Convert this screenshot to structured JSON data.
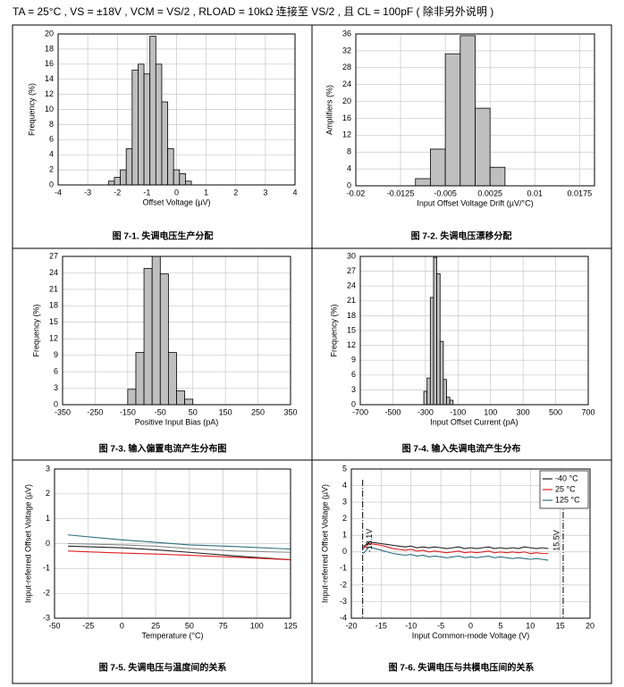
{
  "header": "TA = 25°C , VS = ±18V , VCM = VS/2 , RLOAD = 10kΩ 连接至 VS/2 , 且 CL = 100pF ( 除非另外说明 )",
  "chart_data": [
    {
      "type": "histogram",
      "caption": "图 7-1. 失调电压生产分配",
      "x_label": "Offset Voltage (µV)",
      "y_label": "Frequency (%)",
      "bins": [
        -2.3,
        -2.1,
        -1.9,
        -1.7,
        -1.5,
        -1.3,
        -1.1,
        -0.9,
        -0.7,
        -0.5,
        -0.3,
        -0.1,
        0.1,
        0.3,
        0.5
      ],
      "values": [
        0.5,
        1,
        2,
        4.8,
        15.2,
        16,
        14.7,
        19.7,
        16,
        11,
        4.8,
        2,
        1.5,
        0.5
      ],
      "color": "#bfbfbf",
      "xlim": [
        -4,
        4
      ],
      "xticks": [
        -4,
        -3,
        -2,
        -1,
        0,
        1,
        2,
        3,
        4
      ],
      "ylim": [
        0,
        20
      ],
      "yticks": [
        0,
        2,
        4,
        6,
        8,
        10,
        12,
        14,
        16,
        18,
        20
      ],
      "grid": true
    },
    {
      "type": "histogram",
      "caption": "图 7-2. 失调电压漂移分配",
      "x_label": "Input Offset Voltage Drift (µV/°C)",
      "y_label": "Amplifiers (%)",
      "bins": [
        -0.01,
        -0.0075,
        -0.005,
        -0.0025,
        0,
        0.0025,
        0.005
      ],
      "values": [
        1.7,
        8.7,
        31.3,
        35.6,
        18.4,
        4.4
      ],
      "color": "#bfbfbf",
      "xlim": [
        -0.02,
        0.02
      ],
      "xticks": [
        -0.02,
        -0.0125,
        -0.005,
        0.0025,
        0.01,
        0.0175
      ],
      "ylim": [
        0,
        36
      ],
      "yticks": [
        0,
        4,
        8,
        12,
        16,
        20,
        24,
        28,
        32,
        36
      ],
      "grid": true
    },
    {
      "type": "histogram",
      "caption": "图 7-3. 输入偏置电流产生分布图",
      "x_label": "Positive Input Bias (pA)",
      "y_label": "Frequency (%)",
      "bins": [
        -150,
        -125,
        -100,
        -75,
        -50,
        -25,
        0,
        25,
        50
      ],
      "values": [
        2.8,
        9.5,
        24.8,
        27,
        23.8,
        9.5,
        2.5,
        1
      ],
      "color": "#bfbfbf",
      "xlim": [
        -350,
        350
      ],
      "xticks": [
        -350,
        -250,
        -150,
        -50,
        50,
        150,
        250,
        350
      ],
      "ylim": [
        0,
        27
      ],
      "yticks": [
        0,
        3,
        6,
        9,
        12,
        15,
        18,
        21,
        24,
        27
      ],
      "grid": true
    },
    {
      "type": "histogram",
      "caption": "图 7-4. 输入失调电流产生分布",
      "x_label": "Input Offset Current (pA)",
      "y_label": "Frequency (%)",
      "bins": [
        -310,
        -290,
        -270,
        -250,
        -230,
        -210,
        -190,
        -170,
        -150,
        -130
      ],
      "values": [
        2.7,
        5.4,
        21.7,
        29.8,
        26.5,
        12.8,
        5.1,
        1.5,
        0.9
      ],
      "color": "#bfbfbf",
      "xlim": [
        -700,
        700
      ],
      "xticks": [
        -700,
        -500,
        -300,
        -100,
        100,
        300,
        500,
        700
      ],
      "ylim": [
        0,
        30
      ],
      "yticks": [
        0,
        3,
        6,
        9,
        12,
        15,
        18,
        21,
        24,
        27,
        30
      ],
      "grid": true
    },
    {
      "type": "line",
      "caption": "图 7-5. 失调电压与温度间的关系",
      "x_label": "Temperature (°C)",
      "y_label": "Input-referred Offset Voltage (µV)",
      "x": [
        -40,
        0,
        25,
        50,
        85,
        125
      ],
      "series": [
        {
          "color": "#2f6f7f",
          "values": [
            0.35,
            0.15,
            0.05,
            -0.05,
            -0.12,
            -0.22
          ]
        },
        {
          "color": "#8a8a8a",
          "values": [
            0.0,
            -0.05,
            -0.1,
            -0.2,
            -0.3,
            -0.35
          ]
        },
        {
          "color": "#222222",
          "values": [
            -0.1,
            -0.17,
            -0.25,
            -0.35,
            -0.5,
            -0.65
          ]
        },
        {
          "color": "#e02020",
          "values": [
            -0.3,
            -0.38,
            -0.42,
            -0.47,
            -0.55,
            -0.65
          ]
        }
      ],
      "xlim": [
        -50,
        125
      ],
      "xticks": [
        -50,
        -25,
        0,
        25,
        50,
        75,
        100,
        125
      ],
      "ylim": [
        -3,
        3
      ],
      "yticks": [
        -3,
        -2,
        -1,
        0,
        1,
        2,
        3
      ],
      "grid": true
    },
    {
      "type": "line",
      "caption": "图 7-6. 失调电压与共模电压间的关系",
      "x_label": "Input Common-mode Voltage (V)",
      "y_label": "Input-referred Offset Voltage (µV)",
      "x": [
        -18,
        -17,
        -16,
        -15,
        -14,
        -13,
        -12,
        -11,
        -10,
        -9,
        -8,
        -7,
        -6,
        -5,
        -4,
        -3,
        -2,
        -1,
        0,
        1,
        2,
        3,
        4,
        5,
        6,
        7,
        8,
        9,
        10,
        11,
        12,
        13
      ],
      "series": [
        {
          "name": "-40 °C",
          "color": "#222222",
          "values": [
            0.3,
            0.6,
            0.55,
            0.5,
            0.45,
            0.4,
            0.35,
            0.3,
            0.35,
            0.25,
            0.3,
            0.25,
            0.3,
            0.25,
            0.2,
            0.25,
            0.3,
            0.2,
            0.25,
            0.2,
            0.25,
            0.3,
            0.2,
            0.25,
            0.2,
            0.25,
            0.2,
            0.3,
            0.25,
            0.2,
            0.25,
            0.2
          ]
        },
        {
          "name": "25 °C",
          "color": "#e02020",
          "values": [
            0.2,
            0.5,
            0.45,
            0.4,
            0.3,
            0.2,
            0.15,
            0.1,
            0.15,
            0.05,
            0.1,
            0.0,
            0.05,
            0.0,
            -0.05,
            0.0,
            0.05,
            -0.05,
            0.0,
            -0.05,
            0.0,
            0.05,
            -0.05,
            0.0,
            -0.05,
            0.0,
            -0.05,
            0.0,
            -0.1,
            -0.05,
            -0.1,
            -0.1
          ]
        },
        {
          "name": "125 °C",
          "color": "#2f6f7f",
          "values": [
            -0.1,
            0.3,
            0.2,
            0.1,
            0.0,
            -0.1,
            -0.15,
            -0.2,
            -0.15,
            -0.25,
            -0.2,
            -0.3,
            -0.25,
            -0.3,
            -0.35,
            -0.3,
            -0.25,
            -0.35,
            -0.3,
            -0.35,
            -0.3,
            -0.25,
            -0.35,
            -0.3,
            -0.35,
            -0.4,
            -0.35,
            -0.4,
            -0.45,
            -0.4,
            -0.45,
            -0.5
          ]
        }
      ],
      "vlines": [
        {
          "value": -18.1,
          "label": "-18.1V"
        },
        {
          "value": 15.5,
          "label": "15.5V"
        }
      ],
      "legend": "top-right",
      "xlim": [
        -20,
        20
      ],
      "xticks": [
        -20,
        -15,
        -10,
        -5,
        0,
        5,
        10,
        15,
        20
      ],
      "ylim": [
        -4,
        5
      ],
      "yticks": [
        -4,
        -3,
        -2,
        -1,
        0,
        1,
        2,
        3,
        4,
        5
      ],
      "grid": true
    }
  ]
}
